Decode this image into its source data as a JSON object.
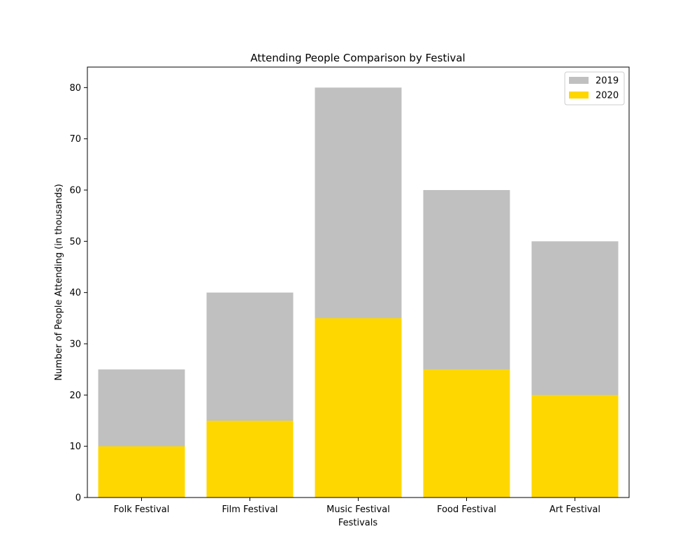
{
  "chart_data": {
    "type": "bar",
    "title": "Attending People Comparison by Festival",
    "xlabel": "Festivals",
    "ylabel": "Number of People Attending (in thousands)",
    "categories": [
      "Folk Festival",
      "Film Festival",
      "Music Festival",
      "Food Festival",
      "Art Festival"
    ],
    "series": [
      {
        "name": "2019",
        "values": [
          25,
          40,
          80,
          60,
          50
        ],
        "color": "#c0c0c0"
      },
      {
        "name": "2020",
        "values": [
          10,
          15,
          35,
          25,
          20
        ],
        "color": "#ffd700"
      }
    ],
    "bar_mode": "overlaid",
    "ylim": [
      0,
      84
    ],
    "yticks": [
      0,
      10,
      20,
      30,
      40,
      50,
      60,
      70,
      80
    ],
    "legend": {
      "position": "top-right"
    },
    "grid": false
  }
}
